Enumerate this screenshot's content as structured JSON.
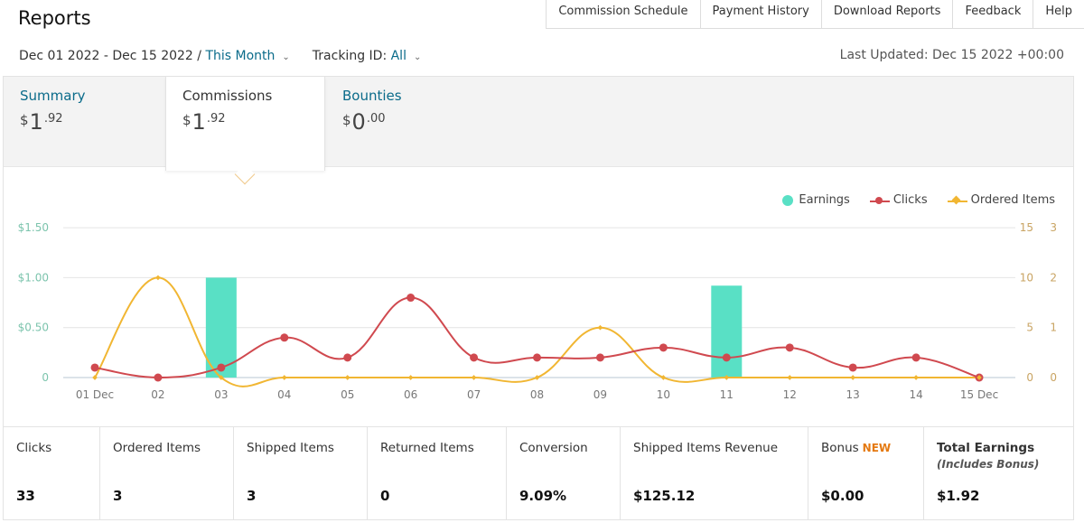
{
  "page": {
    "title": "Reports"
  },
  "topnav": [
    "Commission Schedule",
    "Payment History",
    "Download Reports",
    "Feedback",
    "Help"
  ],
  "filters": {
    "date_range": "Dec 01 2022 - Dec 15 2022 /",
    "period": "This Month",
    "tracking_label": "Tracking ID:",
    "tracking_value": "All"
  },
  "last_updated": "Last Updated: Dec 15 2022 +00:00",
  "tabs": [
    {
      "label": "Summary",
      "symbol": "$",
      "int": "1",
      "frac": ".92",
      "active": false
    },
    {
      "label": "Commissions",
      "symbol": "$",
      "int": "1",
      "frac": ".92",
      "active": true
    },
    {
      "label": "Bounties",
      "symbol": "$",
      "int": "0",
      "frac": ".00",
      "active": false
    }
  ],
  "legend": {
    "earnings": "Earnings",
    "clicks": "Clicks",
    "ordered_items": "Ordered Items"
  },
  "colors": {
    "earnings": "#59e0c5",
    "clicks": "#d0494f",
    "ordered_items": "#f1b632",
    "link": "#0a6b8a"
  },
  "chart_data": {
    "type": "bar",
    "categories": [
      "01 Dec",
      "02",
      "03",
      "04",
      "05",
      "06",
      "07",
      "08",
      "09",
      "10",
      "11",
      "12",
      "13",
      "14",
      "15 Dec"
    ],
    "series": [
      {
        "name": "Earnings",
        "type": "bar",
        "axis": "left",
        "values": [
          0,
          0,
          1.0,
          0,
          0,
          0,
          0,
          0,
          0,
          0,
          0.92,
          0,
          0,
          0,
          0
        ]
      },
      {
        "name": "Clicks",
        "type": "line",
        "axis": "right-outer",
        "values": [
          1,
          0,
          1,
          4,
          2,
          8,
          2,
          2,
          2,
          3,
          2,
          3,
          1,
          2,
          0
        ]
      },
      {
        "name": "Ordered Items",
        "type": "line",
        "axis": "right-inner",
        "values": [
          0,
          2,
          0,
          0,
          0,
          0,
          0,
          0,
          1,
          0,
          0,
          0,
          0,
          0,
          0
        ]
      }
    ],
    "y_left": {
      "ticks": [
        "0",
        "$0.50",
        "$1.00",
        "$1.50"
      ],
      "range": [
        0,
        1.5
      ]
    },
    "y_right_outer": {
      "ticks": [
        "0",
        "5",
        "10",
        "15"
      ],
      "range": [
        0,
        15
      ]
    },
    "y_right_inner": {
      "ticks": [
        "0",
        "1",
        "2",
        "3"
      ],
      "range": [
        0,
        3
      ]
    },
    "grid": true,
    "legend_position": "top-right"
  },
  "stats": [
    {
      "label": "Clicks",
      "value": "33"
    },
    {
      "label": "Ordered Items",
      "value": "3"
    },
    {
      "label": "Shipped Items",
      "value": "3"
    },
    {
      "label": "Returned Items",
      "value": "0"
    },
    {
      "label": "Conversion",
      "value": "9.09%"
    },
    {
      "label": "Shipped Items Revenue",
      "value": "$125.12"
    },
    {
      "label": "Bonus",
      "badge": "NEW",
      "value": "$0.00"
    },
    {
      "label": "Total Earnings",
      "sub": "(Includes Bonus)",
      "value": "$1.92"
    }
  ]
}
